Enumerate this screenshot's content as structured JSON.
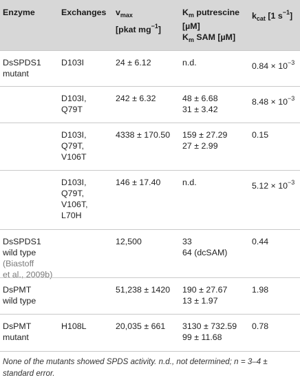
{
  "headers": {
    "enzyme": "Enzyme",
    "exchanges": "Exchanges",
    "vmax_sym": "v",
    "vmax_sub": "max",
    "vmax_unit_a": "[pkat mg",
    "vmax_unit_sup": "−1",
    "vmax_unit_b": "]",
    "km_sym": "K",
    "km_sub": "m",
    "km_put": " putrescine",
    "km_unit1": "[µM]",
    "km_sym2": "K",
    "km_sub2": "m",
    "km_sam": " SAM [µM]",
    "kcat_sym": "k",
    "kcat_sub": "cat",
    "kcat_unit_a": " [1 s",
    "kcat_unit_sup": "−1",
    "kcat_unit_b": "]"
  },
  "rows": [
    {
      "enzyme": [
        "DsSPDS1",
        "mutant"
      ],
      "exchanges": [
        "D103I"
      ],
      "vmax": "24 ± 6.12",
      "km": [
        "n.d."
      ],
      "kcat_base": "0.84 × 10",
      "kcat_exp": "−3"
    },
    {
      "enzyme": [],
      "exchanges": [
        "D103I,",
        "Q79T"
      ],
      "vmax": "242 ± 6.32",
      "km": [
        "48 ± 6.68",
        "31 ± 3.42"
      ],
      "kcat_base": "8.48 × 10",
      "kcat_exp": "−3"
    },
    {
      "enzyme": [],
      "exchanges": [
        "D103I,",
        "Q79T,",
        "V106T"
      ],
      "vmax": "4338 ± 170.50",
      "km": [
        "159 ± 27.29",
        "27 ± 2.99"
      ],
      "kcat_base": "0.15",
      "kcat_exp": ""
    },
    {
      "enzyme": [],
      "exchanges": [
        "D103I,",
        "Q79T,",
        "V106T,",
        "L70H"
      ],
      "vmax": "146 ± 17.40",
      "km": [
        "n.d."
      ],
      "kcat_base": "5.12 × 10",
      "kcat_exp": "−3"
    },
    {
      "enzyme": [
        "DsSPDS1",
        "wild type"
      ],
      "enzyme_cite": [
        "(Biastoff",
        "et al., 2009b)"
      ],
      "exchanges": [],
      "vmax": "12,500",
      "km": [
        "33",
        "64 (dcSAM)"
      ],
      "kcat_base": "0.44",
      "kcat_exp": ""
    },
    {
      "enzyme": [
        "DsPMT",
        "wild type"
      ],
      "exchanges": [],
      "vmax": "51,238 ± 1420",
      "km": [
        "190 ± 27.67",
        "13 ± 1.97"
      ],
      "kcat_base": "1.98",
      "kcat_exp": ""
    },
    {
      "enzyme": [
        "DsPMT",
        "mutant"
      ],
      "exchanges": [
        "H108L"
      ],
      "vmax": "20,035 ± 661",
      "km": [
        "3130 ± 732.59",
        "99 ± 11.68"
      ],
      "kcat_base": "0.78",
      "kcat_exp": ""
    }
  ],
  "footnote": {
    "line1": "None of the mutants showed SPDS activity. n.d., not determined; n = 3–4 ±",
    "line2": "standard error."
  },
  "colors": {
    "header_bg": "#d7d7d7",
    "rule": "#c9c9c9",
    "cite": "#7a7a7a"
  }
}
